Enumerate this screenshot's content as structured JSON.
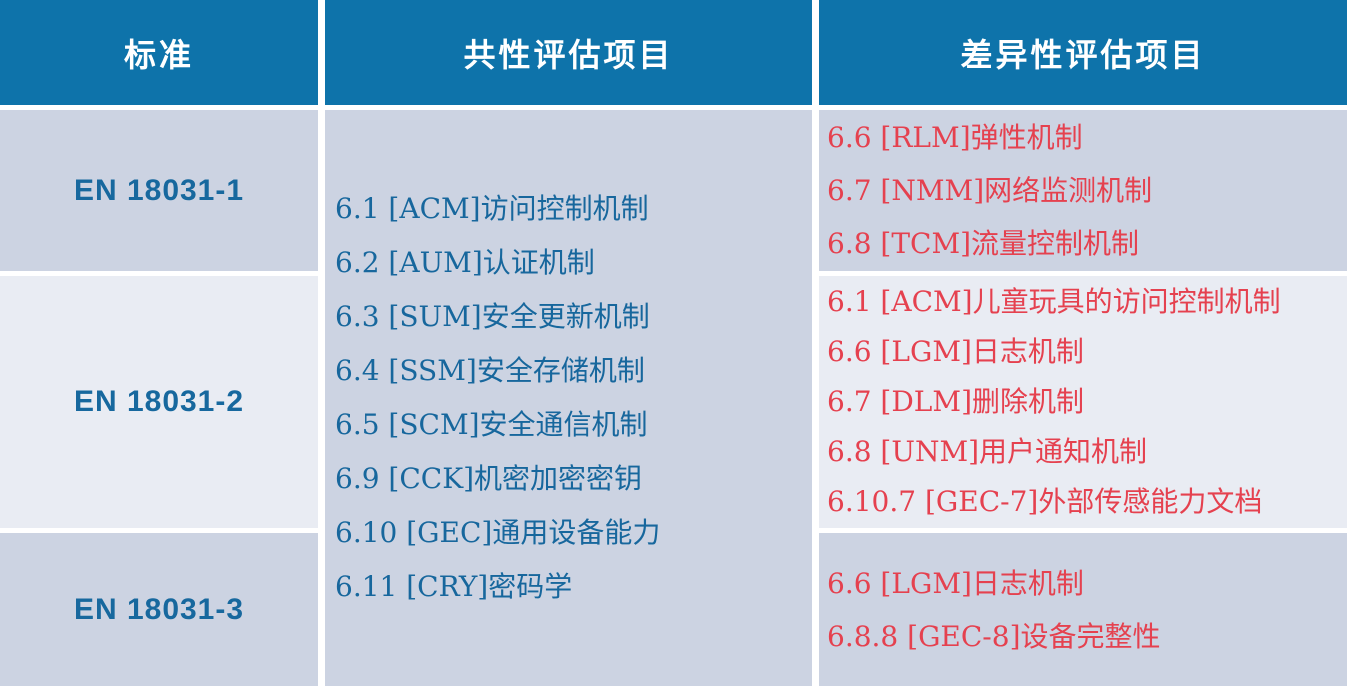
{
  "table": {
    "headers": [
      {
        "label": "标准"
      },
      {
        "label": "共性评估项目"
      },
      {
        "label": "差异性评估项目"
      }
    ],
    "common_items": [
      "6.1 [ACM]访问控制机制",
      "6.2 [AUM]认证机制",
      "6.3 [SUM]安全更新机制",
      "6.4 [SSM]安全存储机制",
      "6.5 [SCM]安全通信机制",
      "6.9 [CCK]机密加密密钥",
      "6.10 [GEC]通用设备能力",
      "6.11 [CRY]密码学"
    ],
    "rows": [
      {
        "standard": "EN 18031-1",
        "diff_items": [
          "6.6 [RLM]弹性机制",
          "6.7 [NMM]网络监测机制",
          "6.8 [TCM]流量控制机制"
        ]
      },
      {
        "standard": "EN 18031-2",
        "diff_items": [
          "6.1 [ACM]儿童玩具的访问控制机制",
          "6.6 [LGM]日志机制",
          "6.7 [DLM]删除机制",
          "6.8 [UNM]用户通知机制",
          "6.10.7 [GEC-7]外部传感能力文档"
        ]
      },
      {
        "standard": "EN 18031-3",
        "diff_items": [
          "6.6 [LGM]日志机制",
          "6.8.8 [GEC-8]设备完整性"
        ]
      }
    ],
    "colors": {
      "header_bg": "#0e73aa",
      "header_text": "#ffffff",
      "row_dark_bg": "#ccd3e2",
      "row_light_bg": "#e9ecf3",
      "standard_text": "#17689e",
      "common_item_text": "#17679d",
      "diff_item_text": "#e5414f"
    }
  }
}
